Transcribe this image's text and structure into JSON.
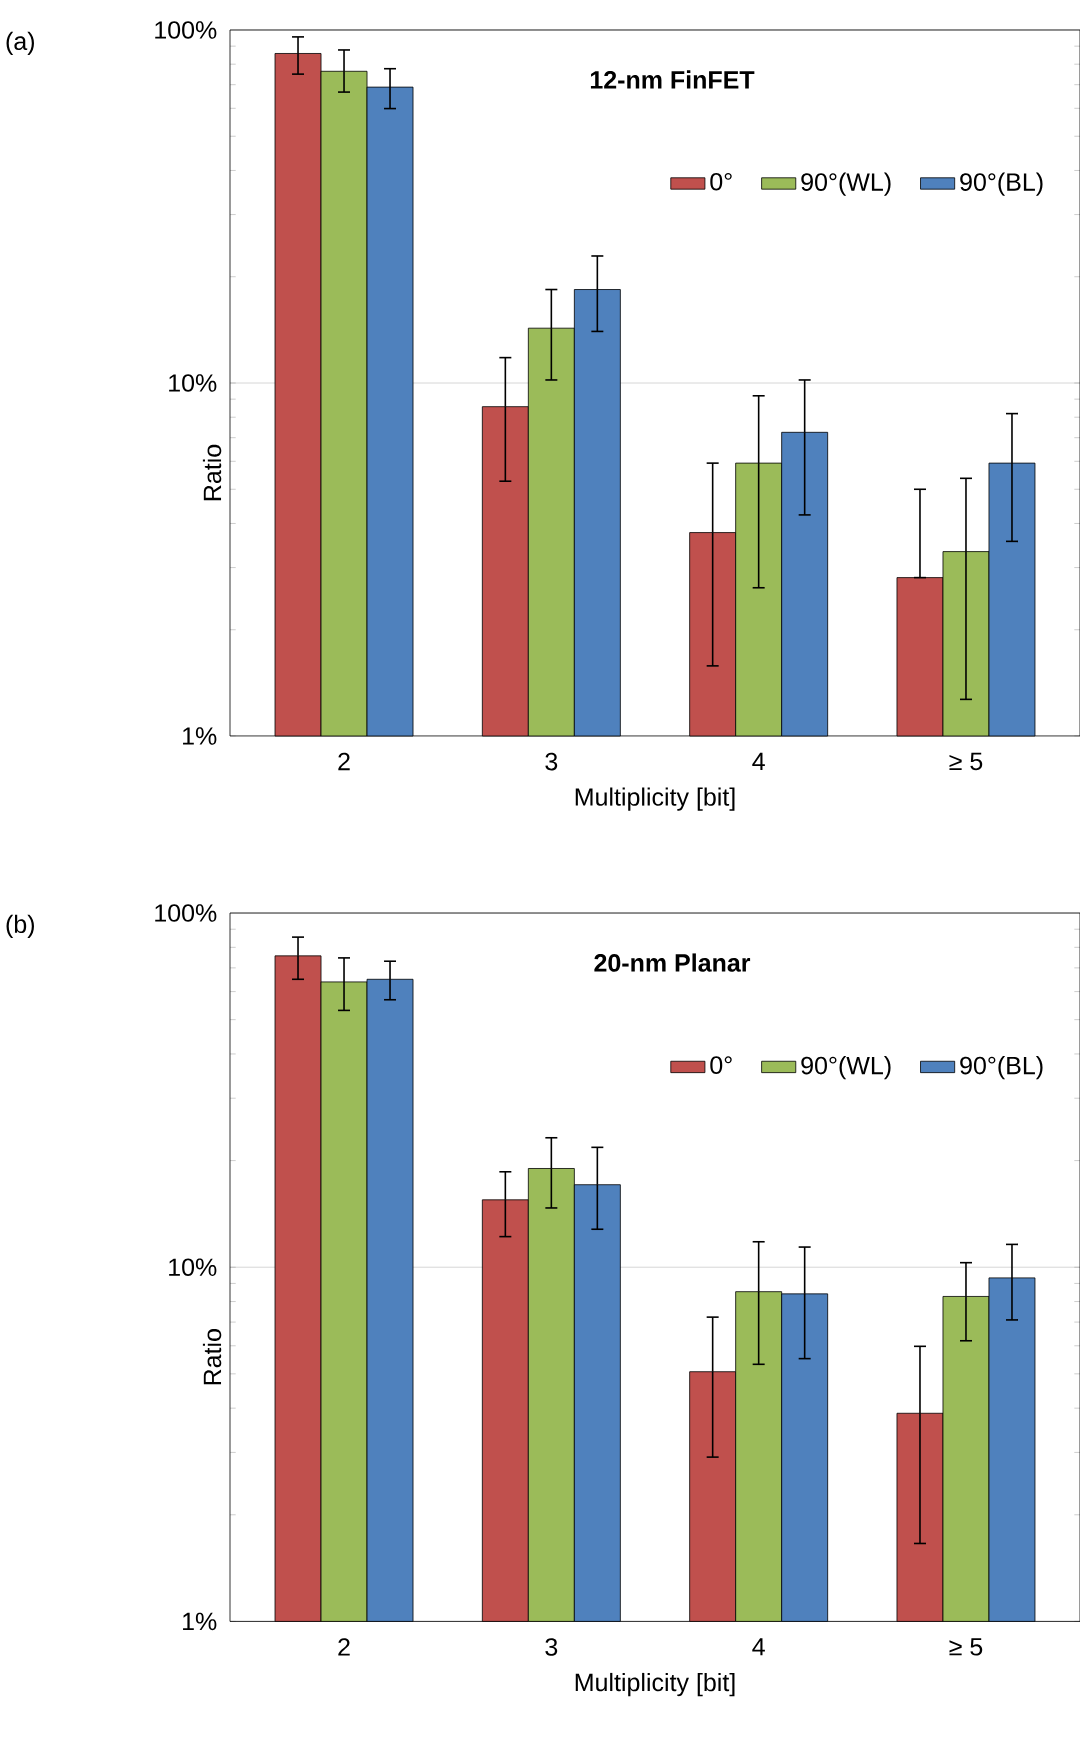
{
  "chart_data": [
    {
      "type": "bar",
      "title": "12-nm FinFET",
      "xlabel": "Multiplicity [bit]",
      "ylabel": "Ratio",
      "annotations": [
        "(a)"
      ],
      "categories": [
        "2",
        "3",
        "4",
        "≥ 5"
      ],
      "log": "y",
      "ylim": [
        1,
        100
      ],
      "yticks": [
        {
          "value": 1,
          "label": "1%"
        },
        {
          "value": 10,
          "label": "10%"
        },
        {
          "value": 100,
          "label": "100%"
        }
      ],
      "grid": "y",
      "legend": "top right",
      "series": [
        {
          "name": "0°",
          "color": "#c0504d",
          "values": [
            85.8,
            8.57,
            3.77,
            2.81
          ],
          "errors": [
            [
              75.0,
              95.6
            ],
            [
              5.27,
              11.8
            ],
            [
              1.58,
              5.93
            ],
            [
              2.81,
              5.0
            ]
          ]
        },
        {
          "name": "90°(WL)",
          "color": "#9bbb59",
          "values": [
            76.4,
            14.3,
            5.93,
            3.33
          ],
          "errors": [
            [
              66.7,
              87.8
            ],
            [
              10.2,
              18.4
            ],
            [
              2.63,
              9.2
            ],
            [
              1.27,
              5.37
            ]
          ]
        },
        {
          "name": "90°(BL)",
          "color": "#4f81bd",
          "values": [
            68.9,
            18.4,
            7.25,
            5.93
          ],
          "errors": [
            [
              59.9,
              77.7
            ],
            [
              14.0,
              22.9
            ],
            [
              4.23,
              10.2
            ],
            [
              3.56,
              8.19
            ]
          ]
        }
      ]
    },
    {
      "type": "bar",
      "title": "20-nm Planar",
      "xlabel": "Multiplicity [bit]",
      "ylabel": "Ratio",
      "annotations": [
        "(b)"
      ],
      "categories": [
        "2",
        "3",
        "4",
        "≥ 5"
      ],
      "log": "y",
      "ylim": [
        1,
        100
      ],
      "yticks": [
        {
          "value": 1,
          "label": "1%"
        },
        {
          "value": 10,
          "label": "10%"
        },
        {
          "value": 100,
          "label": "100%"
        }
      ],
      "grid": "y",
      "legend": "top right",
      "series": [
        {
          "name": "0°",
          "color": "#c0504d",
          "values": [
            75.7,
            15.5,
            5.07,
            3.87
          ],
          "errors": [
            [
              65.0,
              85.5
            ],
            [
              12.2,
              18.6
            ],
            [
              2.91,
              7.23
            ],
            [
              1.66,
              5.98
            ]
          ]
        },
        {
          "name": "90°(WL)",
          "color": "#9bbb59",
          "values": [
            63.9,
            19.0,
            8.53,
            8.27
          ],
          "errors": [
            [
              53.1,
              74.7
            ],
            [
              14.7,
              23.2
            ],
            [
              5.32,
              11.8
            ],
            [
              6.2,
              10.3
            ]
          ]
        },
        {
          "name": "90°(BL)",
          "color": "#4f81bd",
          "values": [
            65.0,
            17.1,
            8.41,
            9.33
          ],
          "errors": [
            [
              56.9,
              73.1
            ],
            [
              12.8,
              21.8
            ],
            [
              5.52,
              11.4
            ],
            [
              7.1,
              11.6
            ]
          ]
        }
      ]
    }
  ]
}
